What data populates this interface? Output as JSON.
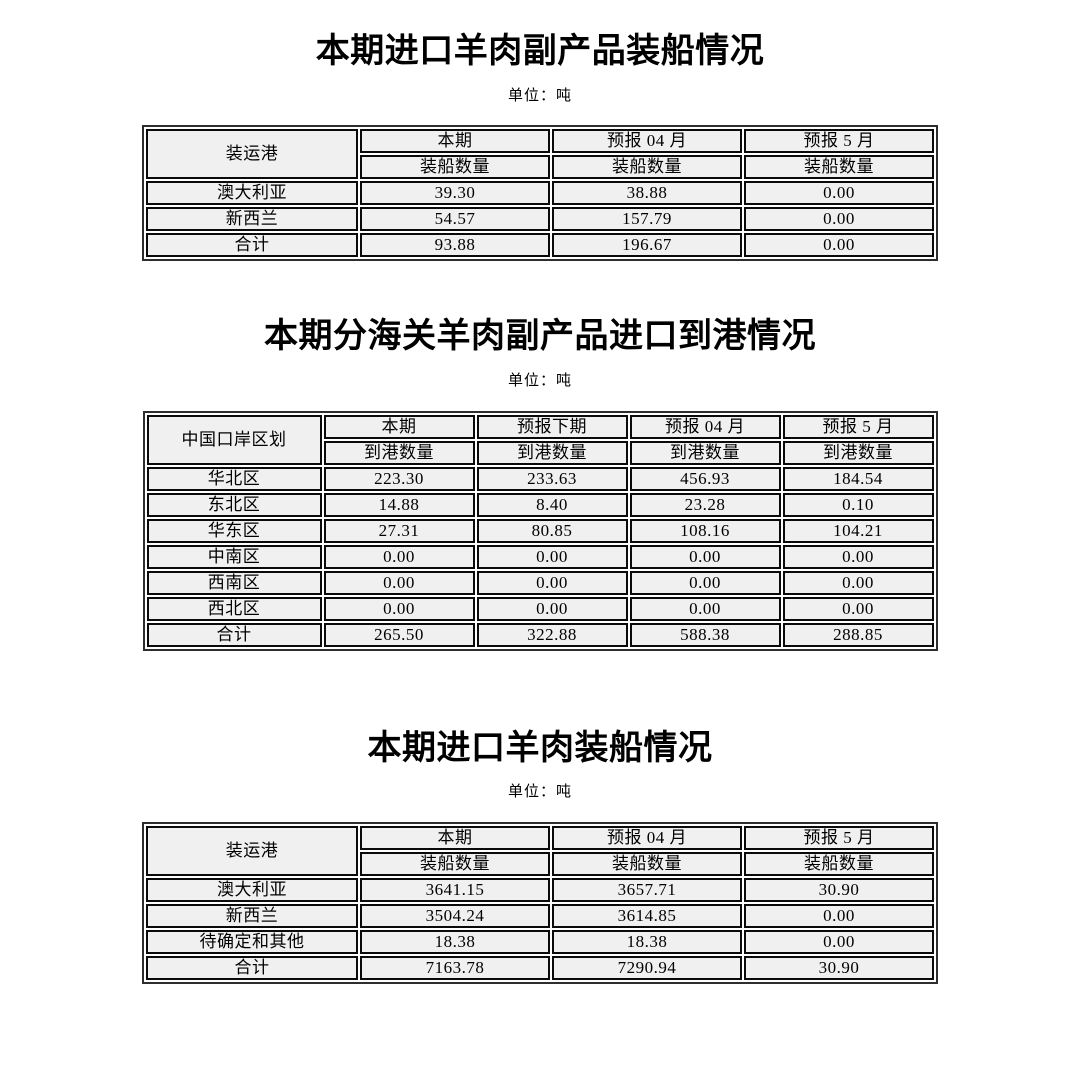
{
  "colors": {
    "page_bg": "#ffffff",
    "cell_bg": "#f0f0f0",
    "border": "#0a0a0a",
    "text": "#000000"
  },
  "sections": [
    {
      "title": "本期进口羊肉副产品装船情况",
      "unit": "单位：吨",
      "table": {
        "corner": "装运港",
        "columns": [
          "本期",
          "预报 04 月",
          "预报 5 月"
        ],
        "sub_headers": [
          "装船数量",
          "装船数量",
          "装船数量"
        ],
        "rows": [
          {
            "label": "澳大利亚",
            "values": [
              "39.30",
              "38.88",
              "0.00"
            ]
          },
          {
            "label": "新西兰",
            "values": [
              "54.57",
              "157.79",
              "0.00"
            ]
          },
          {
            "label": "合计",
            "values": [
              "93.88",
              "196.67",
              "0.00"
            ]
          }
        ]
      }
    },
    {
      "title": "本期分海关羊肉副产品进口到港情况",
      "unit": "单位：吨",
      "table": {
        "corner": "中国口岸区划",
        "columns": [
          "本期",
          "预报下期",
          "预报 04 月",
          "预报 5 月"
        ],
        "sub_headers": [
          "到港数量",
          "到港数量",
          "到港数量",
          "到港数量"
        ],
        "rows": [
          {
            "label": "华北区",
            "values": [
              "223.30",
              "233.63",
              "456.93",
              "184.54"
            ]
          },
          {
            "label": "东北区",
            "values": [
              "14.88",
              "8.40",
              "23.28",
              "0.10"
            ]
          },
          {
            "label": "华东区",
            "values": [
              "27.31",
              "80.85",
              "108.16",
              "104.21"
            ]
          },
          {
            "label": "中南区",
            "values": [
              "0.00",
              "0.00",
              "0.00",
              "0.00"
            ]
          },
          {
            "label": "西南区",
            "values": [
              "0.00",
              "0.00",
              "0.00",
              "0.00"
            ]
          },
          {
            "label": "西北区",
            "values": [
              "0.00",
              "0.00",
              "0.00",
              "0.00"
            ]
          },
          {
            "label": "合计",
            "values": [
              "265.50",
              "322.88",
              "588.38",
              "288.85"
            ]
          }
        ]
      }
    },
    {
      "title": "本期进口羊肉装船情况",
      "unit": "单位：吨",
      "table": {
        "corner": "装运港",
        "columns": [
          "本期",
          "预报 04 月",
          "预报 5 月"
        ],
        "sub_headers": [
          "装船数量",
          "装船数量",
          "装船数量"
        ],
        "rows": [
          {
            "label": "澳大利亚",
            "values": [
              "3641.15",
              "3657.71",
              "30.90"
            ]
          },
          {
            "label": "新西兰",
            "values": [
              "3504.24",
              "3614.85",
              "0.00"
            ]
          },
          {
            "label": "待确定和其他",
            "values": [
              "18.38",
              "18.38",
              "0.00"
            ]
          },
          {
            "label": "合计",
            "values": [
              "7163.78",
              "7290.94",
              "30.90"
            ]
          }
        ]
      }
    }
  ]
}
